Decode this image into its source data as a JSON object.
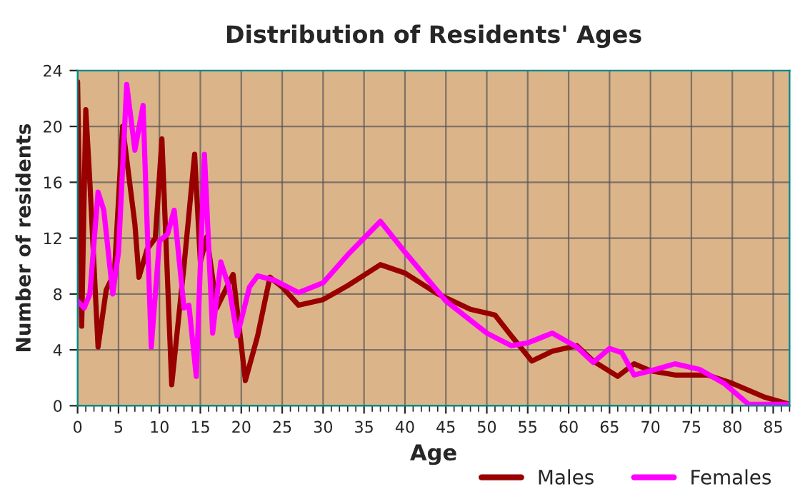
{
  "chart_data": {
    "type": "line",
    "title": "Distribution of Residents' Ages",
    "xlabel": "Age",
    "ylabel": "Number of residents",
    "xlim": [
      0,
      87
    ],
    "xticks": [
      0,
      5,
      10,
      15,
      20,
      25,
      30,
      35,
      40,
      45,
      50,
      55,
      60,
      65,
      70,
      75,
      80,
      85
    ],
    "ylim": [
      0,
      24
    ],
    "yticks": [
      0,
      4,
      8,
      12,
      16,
      20,
      24
    ],
    "grid": true,
    "legend": "bottom right",
    "marker": "none",
    "line_style": "solid",
    "series": [
      {
        "name": "Males",
        "color": "#990000",
        "x": [
          0,
          0.5,
          1,
          1.5,
          2.5,
          3.5,
          4.5,
          5.5,
          7,
          7.5,
          8.5,
          9.5,
          10.3,
          11.5,
          13,
          14.3,
          15,
          15.8,
          17,
          19,
          20.5,
          22,
          23.5,
          25,
          27,
          30,
          33,
          37,
          40,
          44,
          48,
          51,
          53,
          55.5,
          58,
          61,
          63,
          66,
          68,
          70,
          73,
          77,
          80,
          84,
          87
        ],
        "values": [
          23.2,
          5.7,
          21.2,
          16,
          4.2,
          8.3,
          9.5,
          20,
          13,
          9.2,
          11.2,
          12,
          19.1,
          1.5,
          10,
          18,
          10.3,
          12.1,
          7,
          9.4,
          1.8,
          5,
          9.2,
          8.5,
          7.2,
          7.6,
          8.6,
          10.1,
          9.5,
          8,
          6.9,
          6.5,
          5,
          3.2,
          3.9,
          4.3,
          3.2,
          2.1,
          3,
          2.5,
          2.2,
          2.2,
          1.6,
          0.6,
          0.1
        ]
      },
      {
        "name": "Females",
        "color": "#ff00ff",
        "x": [
          0,
          0.8,
          1.5,
          2.5,
          3.2,
          4.3,
          5,
          6,
          7,
          8,
          9,
          10,
          11,
          11.8,
          13,
          13.6,
          14.5,
          15.5,
          16.5,
          17.5,
          18.5,
          19.5,
          21,
          22,
          24,
          27,
          30,
          33,
          37,
          40,
          45,
          50,
          53,
          55,
          58,
          61,
          63,
          65,
          66.5,
          68,
          70,
          73,
          76,
          79,
          82,
          87
        ],
        "values": [
          7.5,
          7,
          8,
          15.3,
          14,
          8,
          11,
          23,
          18.3,
          21.5,
          4.2,
          11.8,
          12.3,
          14,
          7,
          7.2,
          2.1,
          18,
          5.2,
          10.3,
          8.5,
          5,
          8.5,
          9.3,
          9,
          8.1,
          8.8,
          10.8,
          13.2,
          11,
          7.5,
          5.2,
          4.3,
          4.5,
          5.2,
          4.2,
          3.1,
          4.1,
          3.8,
          2.2,
          2.5,
          3,
          2.6,
          1.6,
          0.1,
          0.1
        ]
      }
    ]
  }
}
